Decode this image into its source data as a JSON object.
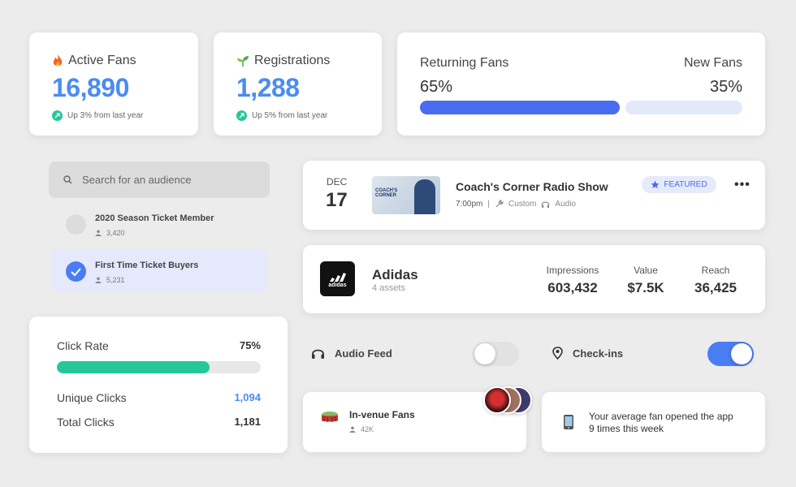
{
  "stats": [
    {
      "title": "Active Fans",
      "value": "16,890",
      "sub": "Up 3% from last year"
    },
    {
      "title": "Registrations",
      "value": "1,288",
      "sub": "Up 5% from last year"
    }
  ],
  "fan_split": {
    "returning_label": "Returning Fans",
    "returning_pct": "65%",
    "returning_fraction": 0.65,
    "new_label": "New Fans",
    "new_pct": "35%"
  },
  "search": {
    "placeholder": "Search for an audience"
  },
  "audiences": [
    {
      "name": "2020 Season Ticket Member",
      "count": "3,420",
      "selected": false
    },
    {
      "name": "First Time Ticket Buyers",
      "count": "5,231",
      "selected": true
    }
  ],
  "clicks": {
    "rate_label": "Click Rate",
    "rate_value": "75%",
    "rate_fraction": 0.75,
    "unique_label": "Unique Clicks",
    "unique_value": "1,094",
    "total_label": "Total Clicks",
    "total_value": "1,181"
  },
  "event": {
    "month": "DEC",
    "day": "17",
    "title": "Coach's Corner Radio Show",
    "time": "7:00pm",
    "type": "Custom",
    "media": "Audio",
    "badge": "FEATURED",
    "thumb_text": "COACH'S CORNER"
  },
  "sponsor": {
    "name": "Adidas",
    "assets": "4 assets",
    "logo_text": "adidas",
    "impressions_label": "Impressions",
    "impressions": "603,432",
    "value_label": "Value",
    "value": "$7.5K",
    "reach_label": "Reach",
    "reach": "36,425"
  },
  "toggles": [
    {
      "label": "Audio Feed",
      "on": false
    },
    {
      "label": "Check-ins",
      "on": true
    }
  ],
  "invenue": {
    "title": "In-venue Fans",
    "count": "42K"
  },
  "insight": {
    "line1": "Your average fan opened the app",
    "line2": "9 times this week"
  },
  "colors": {
    "accent": "#4a7cf3",
    "accent_light": "#e4e8fb",
    "green": "#25c79a",
    "blue_text": "#4a8cf2",
    "toggle_on": "#4a7cf3",
    "toggle_off": "#e2e2e2"
  }
}
